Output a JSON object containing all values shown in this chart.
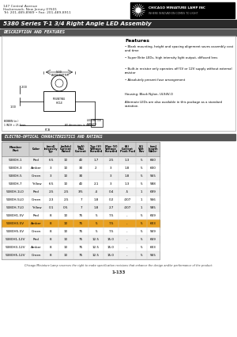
{
  "title_address_line1": "147 Central Avenue",
  "title_address_line2": "Hackensack, New Jersey 07601",
  "title_address_line3": "Tel: 201-489-8989 • Fax: 201-489-8911",
  "series_title": "5380 Series T-1 3/4 Right Angle LED Assembly",
  "section1_title": "DESCRIPTION AND FEATURES",
  "section2_title": "ELECTRO-OPTICAL CHARACTERISTICS AND RATINGS",
  "features_title": "Features",
  "features": [
    "• Blank mounting, height and spacing alignment saves assembly cost and time",
    "• Super Brite LEDs, high intensity light output, diffused lens",
    "• Built-in resistor only operates off 5V or 12V supply without external resistor",
    "• Absolutely present fuse arrangement"
  ],
  "housing_text": "Housing: Black Nylon, UL94V-O",
  "alt_text": "Alternate LEDs are also available in this package as a standard variation.",
  "table_col_headers": [
    "Part\nMember",
    "Color",
    "Typ\nIntensity\n(mcd)",
    "Rated\nCurrent\n(mAdc)",
    "Limit (mA)\nCurrent Max\n(mA)",
    "Forward\nVoltage Typ\n(V)",
    "Forward\nVoltage Max\n(V)",
    "Peak Forward\nCurrent @ <1ms\nPulse (A)",
    "Peak\nReverse\nVoltage\n(V)",
    "Wavelength\nnm"
  ],
  "table_data": [
    [
      "5380H-1",
      "Red",
      "6.5",
      "10",
      "40",
      "1.7",
      "2.5",
      "1.3",
      "5",
      "660"
    ],
    [
      "5380H-3",
      "Amber",
      "3",
      "10",
      "30",
      "2",
      "3",
      "1.8",
      "5",
      "600"
    ],
    [
      "5380H-5",
      "Green",
      "3",
      "10",
      "30",
      "",
      "3",
      "1.8",
      "5",
      "565"
    ],
    [
      "5380H-7",
      "Yellow",
      "6.5",
      "10",
      "40",
      "2.1",
      "3",
      "1.3",
      "5",
      "588"
    ],
    [
      "5380H-1LO",
      "Red",
      "2.5",
      "2.5",
      "3/5",
      "-4",
      "0.4",
      "-5",
      "1",
      "699"
    ],
    [
      "5380H-5LO",
      "Green",
      "2.3",
      "2.5",
      "7",
      "1.8",
      "0.2",
      "-007",
      "1",
      "566"
    ],
    [
      "5380H-7LO",
      "Yellow",
      "0.1",
      "0.5",
      "7",
      "1.8",
      "2.7",
      "-007",
      "1",
      "585"
    ],
    [
      "5380H1-5V",
      "Red",
      "8",
      "10",
      "75",
      "5",
      "7.5",
      "-",
      "5",
      "659"
    ],
    [
      "5380H3-5V",
      "Amber",
      "8",
      "10",
      "75",
      "5",
      "7.5",
      "-",
      "5",
      "603"
    ],
    [
      "5380H5-5V",
      "Green",
      "8",
      "10",
      "75",
      "5",
      "7.5",
      "-",
      "5",
      "569"
    ],
    [
      "5380H1-12V",
      "Red",
      "8",
      "10",
      "75",
      "12.5",
      "15.0",
      "-",
      "5",
      "659"
    ],
    [
      "5380H3-12V",
      "Amber",
      "8",
      "10",
      "75",
      "12.5",
      "15.0",
      "-",
      "5",
      "603"
    ],
    [
      "5380H5-12V",
      "Green",
      "8",
      "10",
      "75",
      "12.5",
      "15.0",
      "-",
      "5",
      "565"
    ]
  ],
  "footer_note": "Chicago Miniature Lamp reserves the right to make specification revisions that enhance the design and/or performance of the product.",
  "page_number": "1-133",
  "bg_color": "#ffffff",
  "title_bar_color": "#2a2a2a",
  "section_bar_color": "#555555",
  "table_header_color": "#d0d0d0",
  "highlight_row": "5380H3-5V",
  "highlight_color": "#e8a020"
}
